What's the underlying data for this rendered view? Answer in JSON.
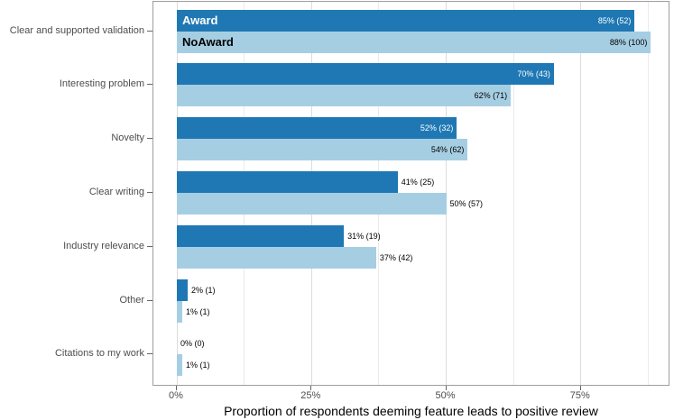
{
  "chart_data": {
    "type": "bar",
    "orientation": "horizontal",
    "title": "",
    "xlabel": "Proportion of respondents deeming feature leads to positive review",
    "ylabel": "",
    "categories": [
      "Clear and supported validation",
      "Interesting problem",
      "Novelty",
      "Clear writing",
      "Industry relevance",
      "Other",
      "Citations to my work"
    ],
    "series": [
      {
        "name": "Award",
        "color": "#1F78B4",
        "name_label_color": "#ffffff",
        "values": [
          85,
          70,
          52,
          41,
          31,
          2,
          0
        ],
        "counts": [
          52,
          43,
          32,
          25,
          19,
          1,
          0
        ],
        "bar_labels": [
          "85% (52)",
          "70% (43)",
          "52% (32)",
          "41% (25)",
          "31% (19)",
          "2% (1)",
          "0% (0)"
        ],
        "label_placement": [
          "inside",
          "inside",
          "inside",
          "outside",
          "outside",
          "outside",
          "outside"
        ],
        "inside_label_color": "#ffffff",
        "outside_label_color": "#000000"
      },
      {
        "name": "NoAward",
        "color": "#A6CEE3",
        "name_label_color": "#000000",
        "values": [
          88,
          62,
          54,
          50,
          37,
          1,
          1
        ],
        "counts": [
          100,
          71,
          62,
          57,
          42,
          1,
          1
        ],
        "bar_labels": [
          "88% (100)",
          "62% (71)",
          "54% (62)",
          "50% (57)",
          "37% (42)",
          "1% (1)",
          "1% (1)"
        ],
        "label_placement": [
          "inside",
          "inside",
          "inside",
          "outside",
          "outside",
          "outside",
          "outside"
        ],
        "inside_label_color": "#000000",
        "outside_label_color": "#000000"
      }
    ],
    "x_axis": {
      "tick_labels": [
        "0%",
        "25%",
        "50%",
        "75%"
      ],
      "tick_values": [
        0,
        25,
        50,
        75
      ],
      "minor_gridlines": [
        12.5,
        37.5,
        62.5,
        87.5
      ],
      "xlim": [
        -4.4,
        91.7
      ]
    },
    "legend": "series names drawn inside first pair of bars",
    "grid": true,
    "colors": {
      "award": "#1F78B4",
      "noaward": "#A6CEE3",
      "grid_major": "#dcdcdc",
      "grid_minor": "#eaeaea",
      "panel_border": "#9e9e9e",
      "axis_text": "#4d4d4d",
      "axis_title": "#000000"
    }
  }
}
